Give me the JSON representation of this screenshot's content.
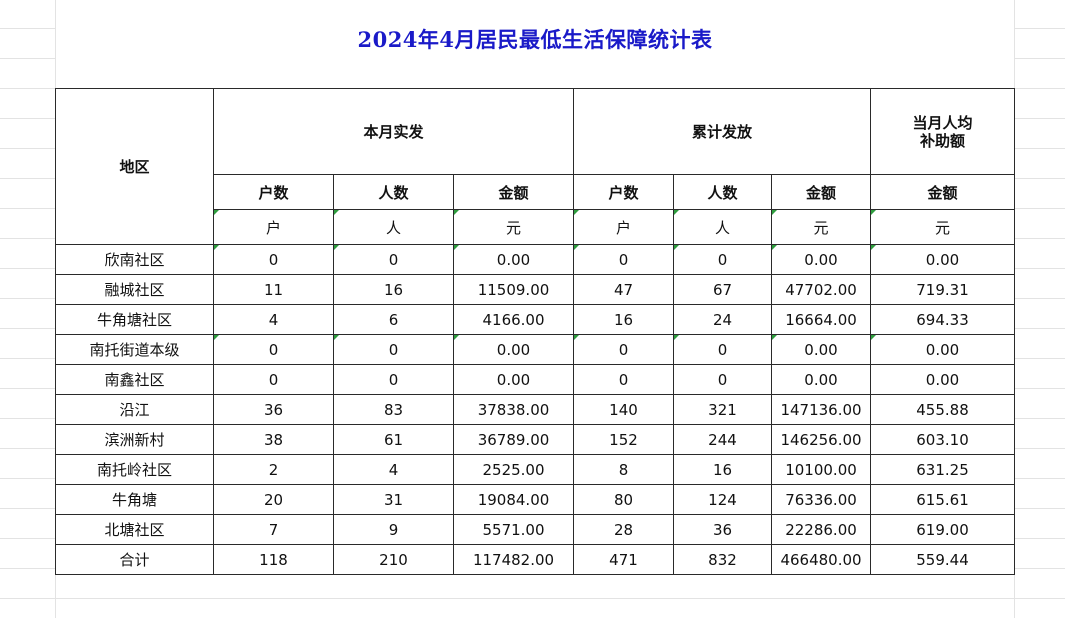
{
  "title": "2024年4月居民最低生活保障统计表",
  "header": {
    "region": "地区",
    "current_month": "本月实发",
    "cumulative": "累计发放",
    "avg_line1": "当月人均",
    "avg_line2": "补助额",
    "sub_households": "户数",
    "sub_people": "人数",
    "sub_amount": "金额",
    "unit_households": "户",
    "unit_people": "人",
    "unit_amount": "元"
  },
  "rows": [
    {
      "region": "欣南社区",
      "m_hh": "0",
      "m_p": "0",
      "m_amt": "0.00",
      "c_hh": "0",
      "c_p": "0",
      "c_amt": "0.00",
      "avg": "0.00"
    },
    {
      "region": "融城社区",
      "m_hh": "11",
      "m_p": "16",
      "m_amt": "11509.00",
      "c_hh": "47",
      "c_p": "67",
      "c_amt": "47702.00",
      "avg": "719.31"
    },
    {
      "region": "牛角塘社区",
      "m_hh": "4",
      "m_p": "6",
      "m_amt": "4166.00",
      "c_hh": "16",
      "c_p": "24",
      "c_amt": "16664.00",
      "avg": "694.33"
    },
    {
      "region": "南托街道本级",
      "m_hh": "0",
      "m_p": "0",
      "m_amt": "0.00",
      "c_hh": "0",
      "c_p": "0",
      "c_amt": "0.00",
      "avg": "0.00"
    },
    {
      "region": "南鑫社区",
      "m_hh": "0",
      "m_p": "0",
      "m_amt": "0.00",
      "c_hh": "0",
      "c_p": "0",
      "c_amt": "0.00",
      "avg": "0.00"
    },
    {
      "region": "沿江",
      "m_hh": "36",
      "m_p": "83",
      "m_amt": "37838.00",
      "c_hh": "140",
      "c_p": "321",
      "c_amt": "147136.00",
      "avg": "455.88"
    },
    {
      "region": "滨洲新村",
      "m_hh": "38",
      "m_p": "61",
      "m_amt": "36789.00",
      "c_hh": "152",
      "c_p": "244",
      "c_amt": "146256.00",
      "avg": "603.10"
    },
    {
      "region": "南托岭社区",
      "m_hh": "2",
      "m_p": "4",
      "m_amt": "2525.00",
      "c_hh": "8",
      "c_p": "16",
      "c_amt": "10100.00",
      "avg": "631.25"
    },
    {
      "region": "牛角塘",
      "m_hh": "20",
      "m_p": "31",
      "m_amt": "19084.00",
      "c_hh": "80",
      "c_p": "124",
      "c_amt": "76336.00",
      "avg": "615.61"
    },
    {
      "region": "北塘社区",
      "m_hh": "7",
      "m_p": "9",
      "m_amt": "5571.00",
      "c_hh": "28",
      "c_p": "36",
      "c_amt": "22286.00",
      "avg": "619.00"
    },
    {
      "region": "合计",
      "m_hh": "118",
      "m_p": "210",
      "m_amt": "117482.00",
      "c_hh": "471",
      "c_p": "832",
      "c_amt": "466480.00",
      "avg": "559.44"
    }
  ],
  "colors": {
    "title": "#1a1ac8",
    "header_bg": "#c0c0c0",
    "error_indicator": "#2e9d3e"
  }
}
